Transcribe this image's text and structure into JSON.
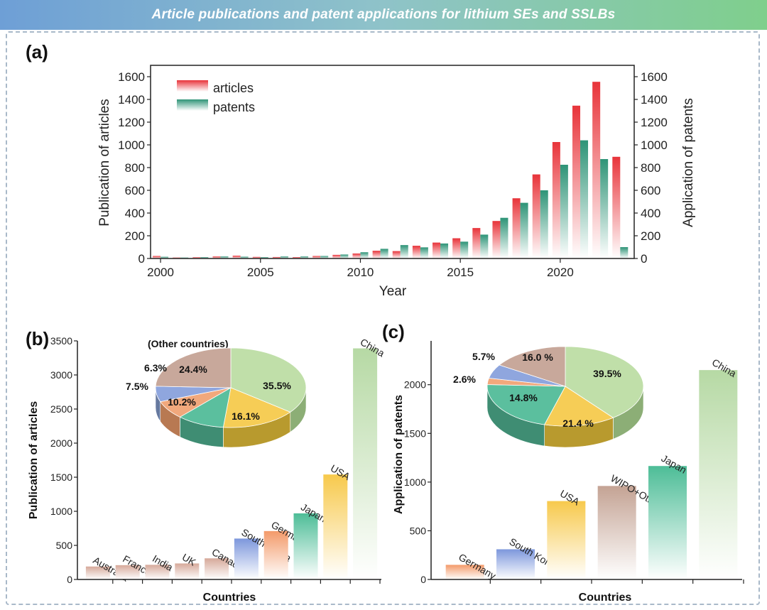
{
  "header": {
    "title": "Article publications and patent applications for lithium SEs and SSLBs"
  },
  "chart_data": [
    {
      "panel": "(a)",
      "type": "bar",
      "x": [
        2000,
        2001,
        2002,
        2003,
        2004,
        2005,
        2006,
        2007,
        2008,
        2009,
        2010,
        2011,
        2012,
        2013,
        2014,
        2015,
        2016,
        2017,
        2018,
        2019,
        2020,
        2021,
        2022,
        2023
      ],
      "series": [
        {
          "name": "articles",
          "values": [
            22,
            8,
            11,
            18,
            25,
            14,
            13,
            12,
            22,
            32,
            44,
            68,
            65,
            112,
            140,
            178,
            268,
            330,
            530,
            740,
            1025,
            1345,
            1555,
            895
          ]
        },
        {
          "name": "patents",
          "values": [
            15,
            8,
            12,
            18,
            16,
            12,
            18,
            18,
            22,
            35,
            55,
            85,
            118,
            98,
            132,
            148,
            210,
            358,
            490,
            600,
            825,
            1040,
            875,
            100
          ]
        }
      ],
      "xlabel": "Year",
      "ylabel": "Publication of articles",
      "ylabel_right": "Application of patents",
      "xlim": [
        1999.5,
        2023.7
      ],
      "ylim": [
        0,
        1700
      ],
      "xticks": [
        2000,
        2005,
        2010,
        2015,
        2020
      ],
      "yticks": [
        0,
        200,
        400,
        600,
        800,
        1000,
        1200,
        1400,
        1600
      ],
      "legend": "top-left"
    },
    {
      "panel": "(b)",
      "type": "bar",
      "categories": [
        "Australia",
        "France",
        "India",
        "UK",
        "Canada",
        "South Korea",
        "Germany",
        "Japan",
        "USA",
        "China"
      ],
      "values": [
        190,
        210,
        215,
        235,
        310,
        600,
        710,
        970,
        1540,
        3390
      ],
      "xlabel": "Countries",
      "ylabel": "Publication of articles",
      "ylim": [
        0,
        3500
      ],
      "yticks": [
        0,
        500,
        1000,
        1500,
        2000,
        2500,
        3000,
        3500
      ],
      "inset_pie": {
        "title": "(Other countries)",
        "slices": [
          {
            "label": "35.5%",
            "value": 35.5
          },
          {
            "label": "16.1%",
            "value": 16.1
          },
          {
            "label": "10.2%",
            "value": 10.2
          },
          {
            "label": "7.5%",
            "value": 7.5
          },
          {
            "label": "6.3%",
            "value": 6.3
          },
          {
            "label": "24.4%",
            "value": 24.4
          }
        ]
      }
    },
    {
      "panel": "(c)",
      "type": "bar",
      "categories": [
        "Germany",
        "South Korea",
        "USA",
        "WIPO+Other",
        "Japan",
        "China"
      ],
      "values": [
        150,
        310,
        805,
        960,
        1165,
        2150
      ],
      "xlabel": "Countries",
      "ylabel": "Application of patents",
      "ylim": [
        0,
        2450
      ],
      "yticks": [
        0,
        500,
        1000,
        1500,
        2000
      ],
      "inset_pie": {
        "slices": [
          {
            "label": "39.5%",
            "value": 39.5
          },
          {
            "label": "14.8%",
            "value": 14.8
          },
          {
            "label": "21.4 %",
            "value": 21.4
          },
          {
            "label": "2.6%",
            "value": 2.6
          },
          {
            "label": "5.7%",
            "value": 5.7
          },
          {
            "label": "16.0 %",
            "value": 16.0
          }
        ]
      }
    }
  ]
}
